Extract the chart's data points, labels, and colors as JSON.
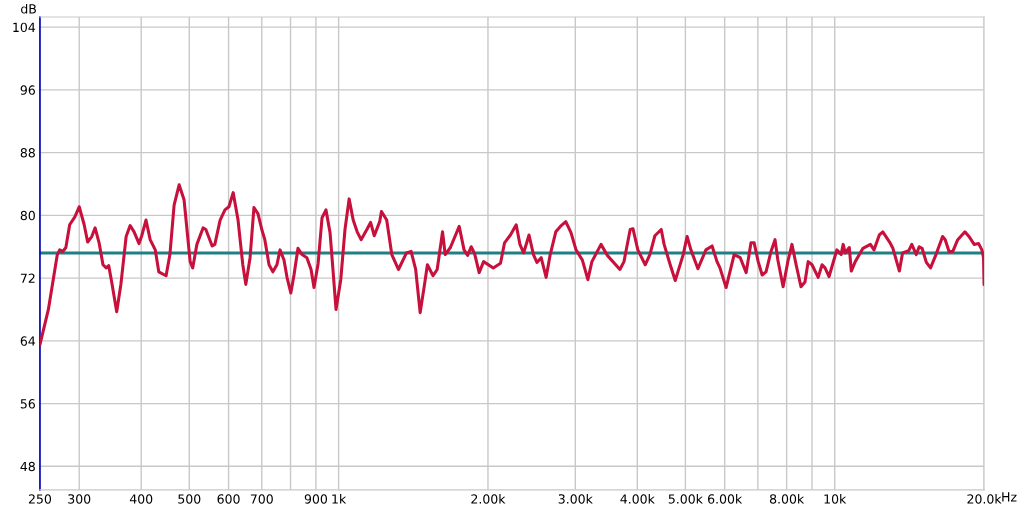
{
  "chart_data": {
    "type": "line",
    "ylabel": "dB",
    "log": "x",
    "grid": true,
    "xlim": [
      250,
      20000
    ],
    "ylim": [
      45,
      105.3
    ],
    "xticks": [
      250,
      300,
      400,
      500,
      600,
      700,
      {
        "value": 800,
        "label": null
      },
      900,
      {
        "value": 1000,
        "label": "1k"
      },
      {
        "value": 2000,
        "label": "2.00k"
      },
      {
        "value": 3000,
        "label": "3.00k"
      },
      {
        "value": 4000,
        "label": "4.00k"
      },
      {
        "value": 5000,
        "label": "5.00k"
      },
      {
        "value": 6000,
        "label": "6.00k"
      },
      {
        "value": 7000,
        "label": null
      },
      {
        "value": 8000,
        "label": "8.00k"
      },
      {
        "value": 9000,
        "label": null
      },
      {
        "value": 10000,
        "label": "10k"
      },
      {
        "value": 20000,
        "label": "20.0k"
      }
    ],
    "xlabel": "Hz",
    "yticks": [
      48,
      56,
      64,
      72,
      80,
      88,
      96,
      104
    ],
    "ref_lines": [
      {
        "axis": "y",
        "value": 75.2,
        "color": "#1f7f84"
      }
    ],
    "series": [
      {
        "color": "#c8103c",
        "x": [
          250,
          260,
          271,
          274,
          278,
          282,
          287,
          294,
          300,
          307,
          312,
          318,
          323,
          329,
          335,
          340,
          344,
          349,
          357,
          364,
          373,
          380,
          387,
          396,
          401,
          409,
          417,
          427,
          434,
          449,
          457,
          466,
          477,
          488,
          502,
          508,
          518,
          533,
          540,
          556,
          563,
          577,
          590,
          601,
          613,
          627,
          641,
          650,
          663,
          675,
          688,
          700,
          710,
          724,
          737,
          751,
          762,
          776,
          787,
          801,
          813,
          828,
          844,
          863,
          880,
          892,
          909,
          926,
          943,
          961,
          974,
          988,
          1010,
          1030,
          1050,
          1070,
          1090,
          1110,
          1140,
          1160,
          1180,
          1210,
          1220,
          1250,
          1280,
          1320,
          1370,
          1400,
          1430,
          1460,
          1490,
          1510,
          1550,
          1580,
          1620,
          1640,
          1680,
          1750,
          1790,
          1820,
          1850,
          1880,
          1920,
          1960,
          2050,
          2120,
          2160,
          2220,
          2280,
          2320,
          2360,
          2420,
          2470,
          2510,
          2560,
          2620,
          2670,
          2740,
          2810,
          2870,
          2940,
          3010,
          3100,
          3180,
          3240,
          3380,
          3480,
          3690,
          3760,
          3870,
          3920,
          4010,
          4150,
          4240,
          4340,
          4470,
          4530,
          4660,
          4770,
          4950,
          5040,
          5130,
          5300,
          5500,
          5660,
          5790,
          5870,
          6040,
          6270,
          6450,
          6630,
          6780,
          6880,
          7010,
          7140,
          7270,
          7440,
          7580,
          7680,
          7870,
          8050,
          8200,
          8360,
          8550,
          8710,
          8840,
          9000,
          9260,
          9430,
          9560,
          9740,
          10100,
          10300,
          10400,
          10500,
          10700,
          10800,
          11000,
          11400,
          11800,
          12000,
          12300,
          12500,
          12900,
          13100,
          13500,
          13700,
          14100,
          14300,
          14600,
          14800,
          15000,
          15300,
          15600,
          16000,
          16500,
          16700,
          17000,
          17300,
          17700,
          18300,
          18700,
          19100,
          19500,
          19800,
          19950,
          20000
        ],
        "values": [
          63.5,
          68.0,
          75.0,
          75.6,
          75.4,
          75.9,
          78.8,
          79.8,
          81.1,
          78.8,
          76.6,
          77.3,
          78.4,
          76.5,
          73.7,
          73.3,
          73.6,
          71.4,
          67.7,
          71.2,
          77.3,
          78.7,
          77.9,
          76.4,
          77.4,
          79.4,
          76.9,
          75.6,
          72.8,
          72.3,
          75.0,
          81.3,
          83.9,
          82.0,
          74.1,
          73.3,
          76.3,
          78.4,
          78.2,
          76.1,
          76.3,
          79.4,
          80.7,
          81.1,
          82.9,
          79.4,
          73.7,
          71.2,
          74.6,
          81.0,
          80.2,
          78.2,
          76.9,
          73.7,
          72.8,
          73.7,
          75.6,
          74.3,
          72.1,
          70.1,
          72.4,
          75.8,
          75.0,
          74.6,
          73.1,
          70.8,
          73.8,
          79.7,
          80.7,
          77.8,
          73.1,
          68.0,
          71.8,
          78.2,
          82.1,
          79.4,
          77.9,
          76.9,
          78.2,
          79.1,
          77.4,
          79.2,
          80.5,
          79.4,
          75.0,
          73.1,
          75.2,
          75.4,
          73.1,
          67.6,
          71.2,
          73.7,
          72.3,
          73.1,
          77.9,
          75.0,
          75.9,
          78.6,
          75.6,
          74.9,
          76.0,
          75.1,
          72.7,
          74.1,
          73.3,
          73.9,
          76.5,
          77.5,
          78.8,
          76.3,
          75.2,
          77.5,
          75.0,
          74.0,
          74.6,
          72.1,
          75.0,
          77.9,
          78.7,
          79.2,
          77.8,
          75.6,
          74.3,
          71.8,
          74.1,
          76.3,
          74.9,
          73.1,
          74.1,
          78.2,
          78.3,
          75.6,
          73.7,
          75.0,
          77.4,
          78.2,
          76.3,
          73.7,
          71.7,
          75.0,
          77.3,
          75.6,
          73.2,
          75.6,
          76.1,
          74.1,
          73.3,
          70.8,
          75.0,
          74.6,
          72.7,
          76.5,
          76.5,
          74.1,
          72.4,
          72.8,
          75.4,
          76.9,
          74.3,
          70.9,
          74.2,
          76.3,
          73.7,
          70.9,
          71.5,
          74.1,
          73.7,
          72.1,
          73.7,
          73.3,
          72.2,
          75.6,
          75.0,
          76.3,
          75.2,
          75.9,
          72.9,
          74.1,
          75.8,
          76.3,
          75.6,
          77.5,
          77.9,
          76.6,
          75.8,
          72.9,
          75.2,
          75.5,
          76.3,
          75.0,
          76.0,
          75.8,
          74.0,
          73.3,
          75.0,
          77.3,
          76.9,
          75.4,
          75.4,
          76.9,
          77.9,
          77.2,
          76.3,
          76.4,
          75.6,
          74.6,
          71.2
        ]
      }
    ]
  }
}
